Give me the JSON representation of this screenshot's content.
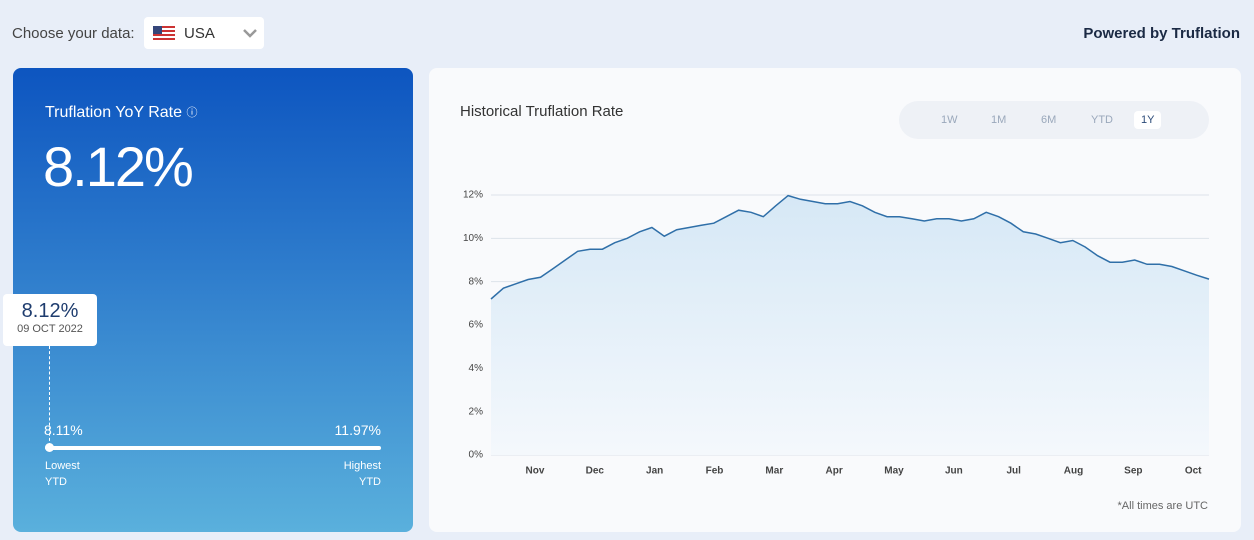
{
  "header": {
    "choose_label": "Choose your data:",
    "country": "USA",
    "powered_by": "Powered by Truflation"
  },
  "summary": {
    "title": "Truflation YoY Rate",
    "current_rate": "8.12%",
    "tooltip": {
      "value": "8.12%",
      "date": "09 OCT 2022"
    },
    "low": {
      "value": "8.11%",
      "label": [
        "Lowest",
        "YTD"
      ]
    },
    "high": {
      "value": "11.97%",
      "label": [
        "Highest",
        "YTD"
      ]
    }
  },
  "range_buttons": [
    "1W",
    "1M",
    "6M",
    "YTD",
    "1Y"
  ],
  "selected_range": "1Y",
  "footnote": "*All times are UTC",
  "chart_data": {
    "type": "area",
    "title": "Historical Truflation Rate",
    "x_labels": [
      "Nov",
      "Dec",
      "Jan",
      "Feb",
      "Mar",
      "Apr",
      "May",
      "Jun",
      "Jul",
      "Aug",
      "Sep",
      "Oct"
    ],
    "values": [
      7.2,
      7.7,
      7.9,
      8.1,
      8.2,
      8.6,
      9.0,
      9.4,
      9.5,
      9.5,
      9.8,
      10.0,
      10.3,
      10.5,
      10.1,
      10.4,
      10.5,
      10.6,
      10.7,
      11.0,
      11.3,
      11.2,
      11.0,
      11.5,
      11.97,
      11.8,
      11.7,
      11.6,
      11.6,
      11.7,
      11.5,
      11.2,
      11.0,
      11.0,
      10.9,
      10.8,
      10.9,
      10.9,
      10.8,
      10.9,
      11.2,
      11.0,
      10.7,
      10.3,
      10.2,
      10.0,
      9.8,
      9.9,
      9.6,
      9.2,
      8.9,
      8.9,
      9.0,
      8.8,
      8.8,
      8.7,
      8.5,
      8.3,
      8.12
    ],
    "color": "#2f6fa8",
    "ylim": [
      0,
      12
    ],
    "yticks": [
      {
        "value": 0,
        "label": "0%"
      },
      {
        "value": 2,
        "label": "2%"
      },
      {
        "value": 4,
        "label": "4%"
      },
      {
        "value": 6,
        "label": "6%"
      },
      {
        "value": 8,
        "label": "8%"
      },
      {
        "value": 10,
        "label": "10%"
      },
      {
        "value": 12,
        "label": "12%"
      }
    ],
    "grid": true
  }
}
